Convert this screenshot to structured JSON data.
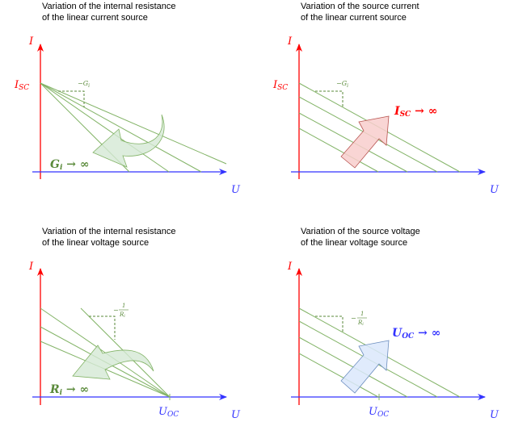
{
  "panels": [
    {
      "title_line1": "Variation of the internal resistance",
      "title_line2": "of the linear current source",
      "y_axis": "I",
      "x_axis": "U",
      "intercept_label": "I",
      "intercept_sub": "SC",
      "slope_label": "−G",
      "slope_sub": "i",
      "change_label": "G",
      "change_sub": "i",
      "change_suffix": " → ∞",
      "arrow_color": "#d5e8d4"
    },
    {
      "title_line1": "Variation of the source current",
      "title_line2": "of the linear current source",
      "y_axis": "I",
      "x_axis": "U",
      "intercept_label": "I",
      "intercept_sub": "SC",
      "slope_label": "−G",
      "slope_sub": "i",
      "change_label": "I",
      "change_sub": "SC",
      "change_suffix": " → ∞",
      "arrow_color": "#f8cecc"
    },
    {
      "title_line1": "Variation of the internal resistance",
      "title_line2": "of the linear voltage source",
      "y_axis": "I",
      "x_axis": "U",
      "intercept_label": "U",
      "intercept_sub": "OC",
      "slope_num": "1",
      "slope_den": "R",
      "slope_sub": "i",
      "slope_sign": "−",
      "change_label": "R",
      "change_sub": "i",
      "change_suffix": " → ∞",
      "arrow_color": "#d5e8d4"
    },
    {
      "title_line1": "Variation of the source voltage",
      "title_line2": "of the linear voltage source",
      "y_axis": "I",
      "x_axis": "U",
      "intercept_label": "U",
      "intercept_sub": "OC",
      "slope_num": "1",
      "slope_den": "R",
      "slope_sub": "i",
      "slope_sign": "−",
      "change_label": "U",
      "change_sub": "OC",
      "change_suffix": " → ∞",
      "arrow_color": "#dae8fc"
    }
  ],
  "colors": {
    "current_axis": "#ff0000",
    "voltage_axis": "#3333ff",
    "lines": "#82b366"
  }
}
